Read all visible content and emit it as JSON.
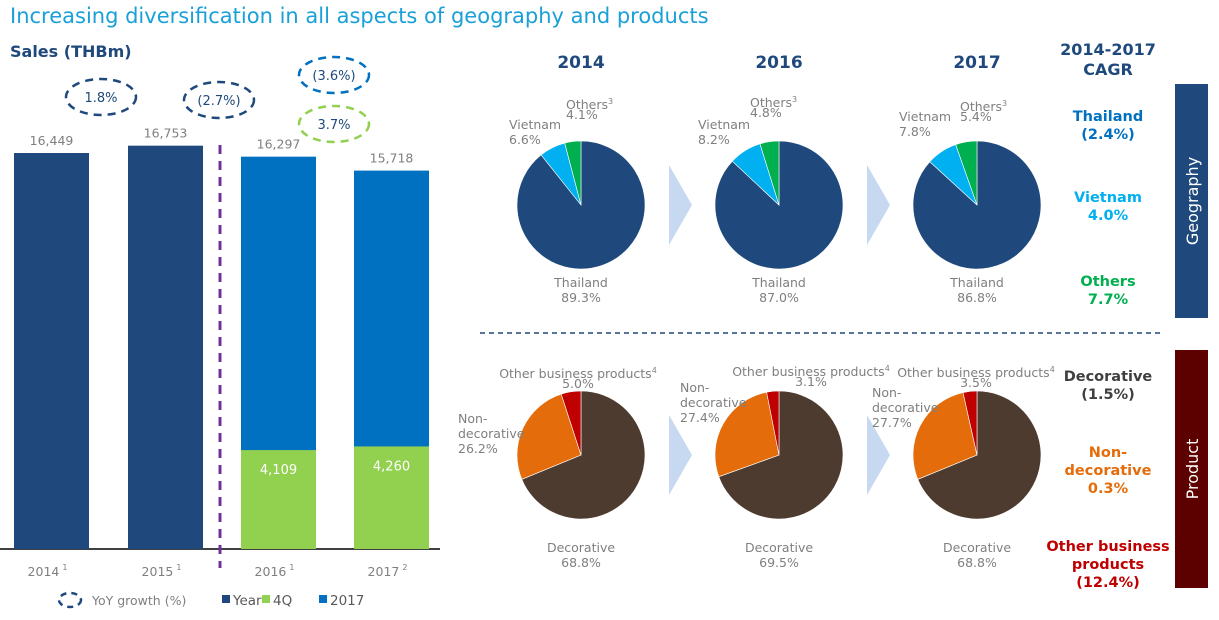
{
  "title": "Increasing diversification in all aspects of geography and products",
  "colors": {
    "title": "#1aa0d8",
    "year": "#1f497d",
    "q4": "#92d050",
    "y2017": "#0070c0",
    "thailand": "#1f497d",
    "vietnam": "#00b0f0",
    "others": "#00b050",
    "decorative": "#4e3b30",
    "non_decorative": "#e46c0a",
    "other_business": "#c00000",
    "geo_box": "#1f497d",
    "prod_box": "#5c0000",
    "arrow": "#c6d9f1",
    "divider": "#7030a0"
  },
  "chart_data": [
    {
      "type": "bar",
      "title": "Sales (THBm)",
      "categories": [
        "2014",
        "2015",
        "2016",
        "2017"
      ],
      "category_footnotes": [
        "1",
        "1",
        "1",
        "2"
      ],
      "series": [
        {
          "name": "Year",
          "values": [
            16449,
            16753,
            null,
            null
          ]
        },
        {
          "name": "2017",
          "values": [
            null,
            null,
            16297,
            15718
          ]
        },
        {
          "name": "4Q",
          "values": [
            null,
            null,
            4109,
            4260
          ]
        }
      ],
      "value_labels": [
        "16,449",
        "16,753",
        "16,297",
        "15,718"
      ],
      "q4_labels": [
        "4,109",
        "4,260"
      ],
      "yoy_growth": [
        {
          "label": "1.8%",
          "series": "Year"
        },
        {
          "label": "(2.7%)",
          "series": "Year"
        },
        {
          "label": "(3.6%)",
          "series": "2017"
        },
        {
          "label": "3.7%",
          "series": "4Q"
        }
      ],
      "legend": {
        "growth": "YoY growth (%)",
        "items": [
          "Year",
          "4Q",
          "2017"
        ]
      }
    },
    {
      "type": "pie",
      "group": "Geography",
      "years": [
        "2014",
        "2016",
        "2017"
      ],
      "series": [
        {
          "name": "Thailand",
          "values": [
            89.3,
            87.0,
            86.8
          ],
          "labels": [
            "89.3%",
            "87.0%",
            "86.8%"
          ]
        },
        {
          "name": "Vietnam",
          "values": [
            6.6,
            8.2,
            7.8
          ],
          "labels": [
            "6.6%",
            "8.2%",
            "7.8%"
          ]
        },
        {
          "name": "Others",
          "footnote": "3",
          "values": [
            4.1,
            4.8,
            5.4
          ],
          "labels": [
            "4.1%",
            "4.8%",
            "5.4%"
          ]
        }
      ]
    },
    {
      "type": "pie",
      "group": "Product",
      "years": [
        "2014",
        "2016",
        "2017"
      ],
      "series": [
        {
          "name": "Decorative",
          "values": [
            68.8,
            69.5,
            68.8
          ],
          "labels": [
            "68.8%",
            "69.5%",
            "68.8%"
          ]
        },
        {
          "name": "Non-decorative",
          "name_lines": [
            "Non-",
            "decorative"
          ],
          "values": [
            26.2,
            27.4,
            27.7
          ],
          "labels": [
            "26.2%",
            "27.4%",
            "27.7%"
          ]
        },
        {
          "name": "Other business products",
          "footnote": "4",
          "values": [
            5.0,
            3.1,
            3.5
          ],
          "labels": [
            "5.0%",
            "3.1%",
            "3.5%"
          ]
        }
      ]
    }
  ],
  "cagr": {
    "header": [
      "2014-2017",
      "CAGR"
    ],
    "geography": [
      [
        "Thailand",
        "(2.4%)"
      ],
      [
        "Vietnam",
        "4.0%"
      ],
      [
        "Others",
        "7.7%"
      ]
    ],
    "product": [
      [
        "Decorative",
        "(1.5%)"
      ],
      [
        "Non-",
        "decorative",
        "0.3%"
      ],
      [
        "Other business",
        "products",
        "(12.4%)"
      ]
    ]
  },
  "side_labels": {
    "geography": "Geography",
    "product": "Product"
  }
}
